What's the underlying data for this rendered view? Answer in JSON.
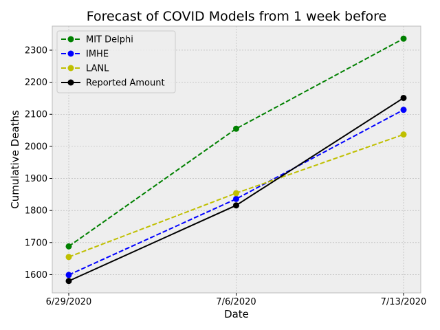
{
  "chart_data": {
    "type": "line",
    "title": "Forecast of COVID Models from 1 week before",
    "xlabel": "Date",
    "ylabel": "Cumulative Deaths",
    "categories": [
      "6/29/2020",
      "7/6/2020",
      "7/13/2020"
    ],
    "ylim": [
      1543,
      2375
    ],
    "yticks": [
      1600,
      1700,
      1800,
      1900,
      2000,
      2100,
      2200,
      2300
    ],
    "grid": true,
    "legend_position": "top-left",
    "series": [
      {
        "name": "MIT Delphi",
        "values": [
          1688,
          2055,
          2336
        ],
        "color": "#008000",
        "style": "dashed"
      },
      {
        "name": "IMHE",
        "values": [
          1599,
          1836,
          2114
        ],
        "color": "#0000ff",
        "style": "dashed"
      },
      {
        "name": "LANL",
        "values": [
          1655,
          1854,
          2037
        ],
        "color": "#bfbf00",
        "style": "dashed"
      },
      {
        "name": "Reported Amount",
        "values": [
          1580,
          1816,
          2151
        ],
        "color": "#000000",
        "style": "solid"
      }
    ],
    "colors": {
      "plot_background": "#eeeeee",
      "grid": "#b0b0b0",
      "axes_edge": "#bcbcbc"
    }
  }
}
